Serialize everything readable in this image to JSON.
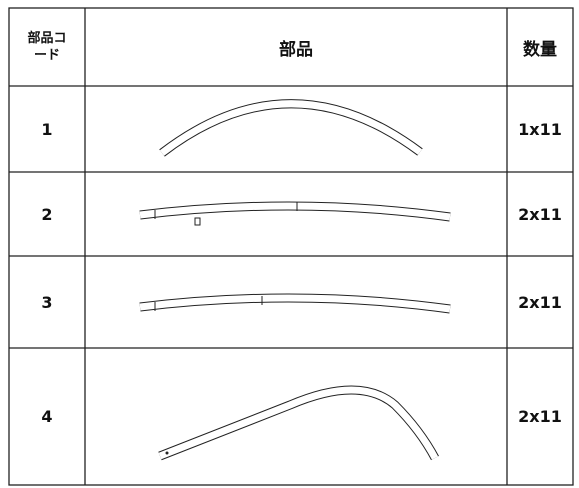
{
  "header": {
    "code": "部品コード",
    "part": "部品",
    "quantity": "数量"
  },
  "rows": [
    {
      "code": "1",
      "quantity": "1x11"
    },
    {
      "code": "2",
      "quantity": "2x11"
    },
    {
      "code": "3",
      "quantity": "2x11"
    },
    {
      "code": "4",
      "quantity": "2x11"
    }
  ]
}
